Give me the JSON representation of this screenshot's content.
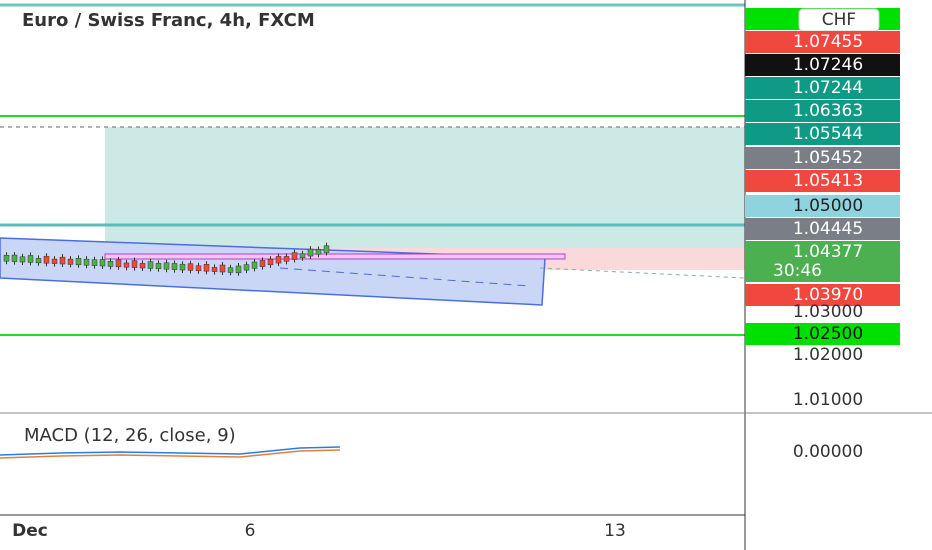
{
  "header": {
    "title": "Euro / Swiss Franc, 4h, FXCM",
    "currency": "CHF"
  },
  "price_axis": {
    "labels": [
      {
        "text": "1.07455"
      },
      {
        "text": "1.07246"
      },
      {
        "text": "1.07244"
      },
      {
        "text": "1.06363"
      },
      {
        "text": "1.05544"
      },
      {
        "text": "1.05452"
      },
      {
        "text": "1.05413"
      },
      {
        "text": "1.05000"
      },
      {
        "text": "1.04445"
      },
      {
        "text": "1.04377",
        "countdown": "30:46"
      },
      {
        "text": "1.03970"
      },
      {
        "text": "1.03000"
      },
      {
        "text": "1.02500"
      },
      {
        "text": "1.02000"
      },
      {
        "text": "1.01000"
      }
    ]
  },
  "macd": {
    "label": "MACD (12, 26, close, 9)",
    "axis_label": "0.00000"
  },
  "time_axis": {
    "labels": [
      "Dec",
      "6",
      "13"
    ]
  }
}
